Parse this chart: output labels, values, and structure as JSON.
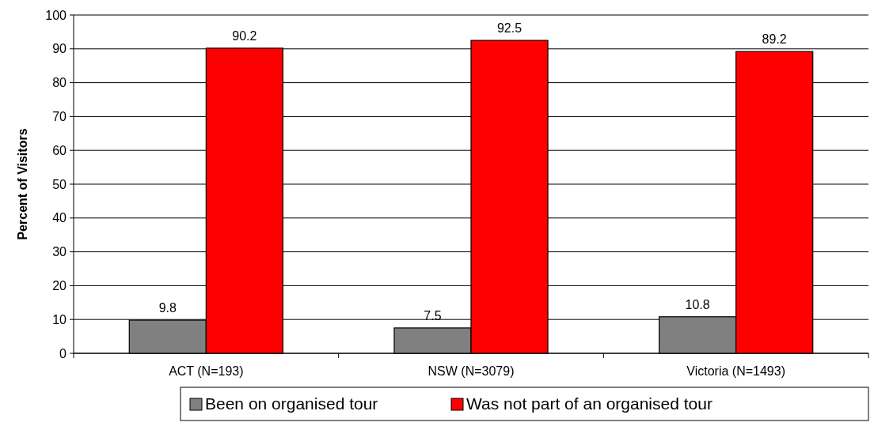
{
  "chart_data": {
    "type": "bar",
    "ylabel": "Percent of Visitors",
    "categories": [
      "ACT (N=193)",
      "NSW (N=3079)",
      "Victoria (N=1493)"
    ],
    "series": [
      {
        "name": "Been on organised tour",
        "color": "#808080",
        "values": [
          9.8,
          7.5,
          10.8
        ]
      },
      {
        "name": "Was not part of an organised tour",
        "color": "#ff0000",
        "values": [
          90.2,
          92.5,
          89.2
        ]
      }
    ],
    "ylim": [
      0,
      100
    ],
    "yticks": [
      0,
      10,
      20,
      30,
      40,
      50,
      60,
      70,
      80,
      90,
      100
    ],
    "grid": "y",
    "legend": "bottom",
    "data_labels": true
  }
}
